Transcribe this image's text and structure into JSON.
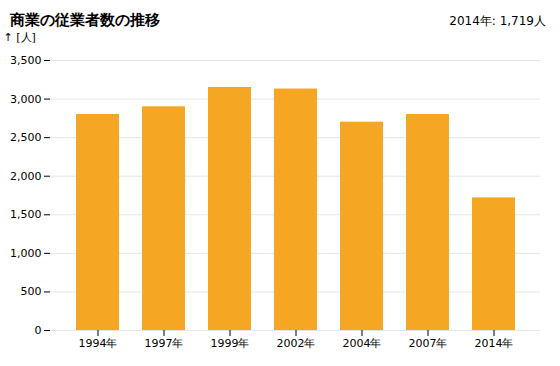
{
  "chart_data": {
    "type": "bar",
    "title": "商業の従業者数の推移",
    "ylabel": "[人]",
    "annotation": "2014年: 1,719人",
    "categories": [
      "1994年",
      "1997年",
      "1999年",
      "2002年",
      "2004年",
      "2007年",
      "2014年"
    ],
    "values": [
      2800,
      2900,
      3150,
      3130,
      2700,
      2800,
      1719
    ],
    "color": "#F5A623",
    "ylim": [
      0,
      3500
    ],
    "yticks": [
      0,
      500,
      {
        "value": 1000,
        "label": "1,000"
      },
      {
        "value": 1500,
        "label": "1,500"
      },
      {
        "value": 2000,
        "label": "2,000"
      },
      {
        "value": 2500,
        "label": "2,500"
      },
      {
        "value": 3000,
        "label": "3,000"
      },
      {
        "value": 3500,
        "label": "3,500"
      }
    ],
    "grid": true
  }
}
